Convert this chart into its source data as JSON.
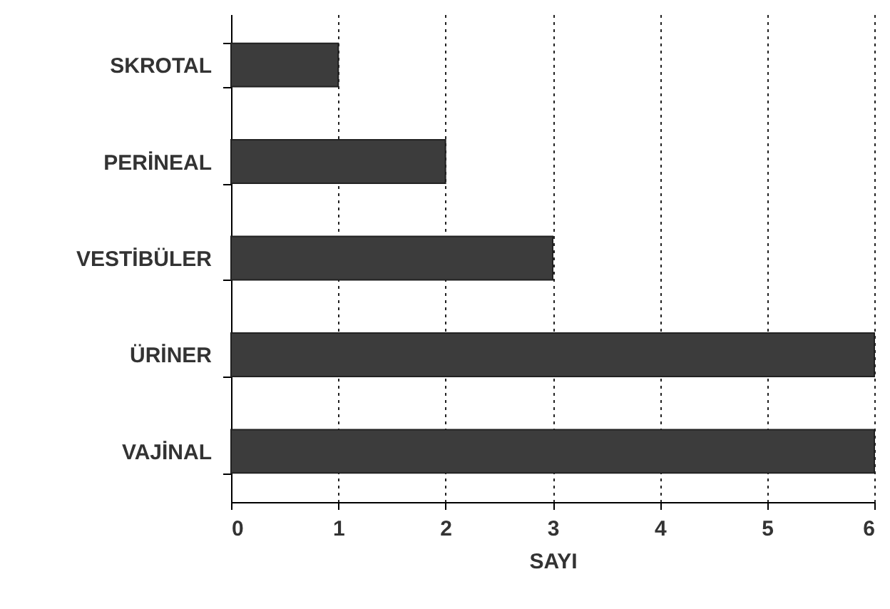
{
  "chart_data": {
    "type": "bar",
    "orientation": "horizontal",
    "xlabel": "SAYI",
    "categories": [
      "SKROTAL",
      "PERİNEAL",
      "VESTİBÜLER",
      "ÜRİNER",
      "VAJİNAL"
    ],
    "values": [
      1,
      2,
      3,
      6,
      6
    ],
    "color": "#3c3c3c",
    "xlim": [
      0,
      6
    ],
    "xticks": [
      0,
      1,
      2,
      3,
      4,
      5,
      6
    ],
    "grid": "x"
  }
}
